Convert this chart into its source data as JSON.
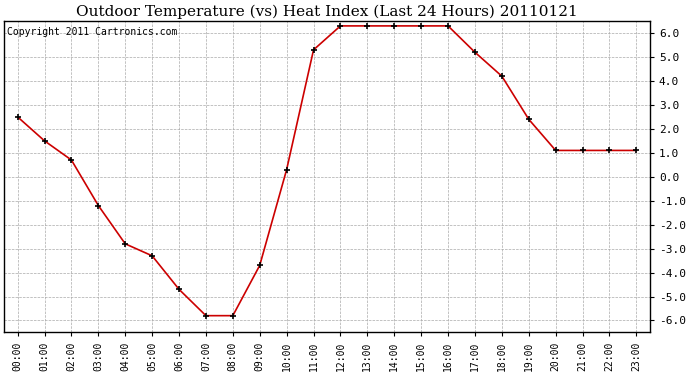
{
  "title": "Outdoor Temperature (vs) Heat Index (Last 24 Hours) 20110121",
  "copyright_text": "Copyright 2011 Cartronics.com",
  "hours": [
    "00:00",
    "01:00",
    "02:00",
    "03:00",
    "04:00",
    "05:00",
    "06:00",
    "07:00",
    "08:00",
    "09:00",
    "10:00",
    "11:00",
    "12:00",
    "13:00",
    "14:00",
    "15:00",
    "16:00",
    "17:00",
    "18:00",
    "19:00",
    "20:00",
    "21:00",
    "22:00",
    "23:00"
  ],
  "values": [
    2.5,
    1.5,
    0.7,
    -1.2,
    -2.8,
    -3.3,
    -4.7,
    -5.8,
    -5.8,
    -3.7,
    0.3,
    5.3,
    6.3,
    6.3,
    6.3,
    6.3,
    6.3,
    5.2,
    4.2,
    2.4,
    1.1,
    1.1,
    1.1,
    1.1
  ],
  "line_color": "#cc0000",
  "marker": "+",
  "marker_color": "#000000",
  "bg_color": "#ffffff",
  "grid_color": "#aaaaaa",
  "ylim": [
    -6.5,
    6.5
  ],
  "yticks": [
    -6.0,
    -5.0,
    -4.0,
    -3.0,
    -2.0,
    -1.0,
    0.0,
    1.0,
    2.0,
    3.0,
    4.0,
    5.0,
    6.0
  ],
  "title_fontsize": 11,
  "copyright_fontsize": 7,
  "tick_fontsize": 7,
  "ytick_fontsize": 8
}
